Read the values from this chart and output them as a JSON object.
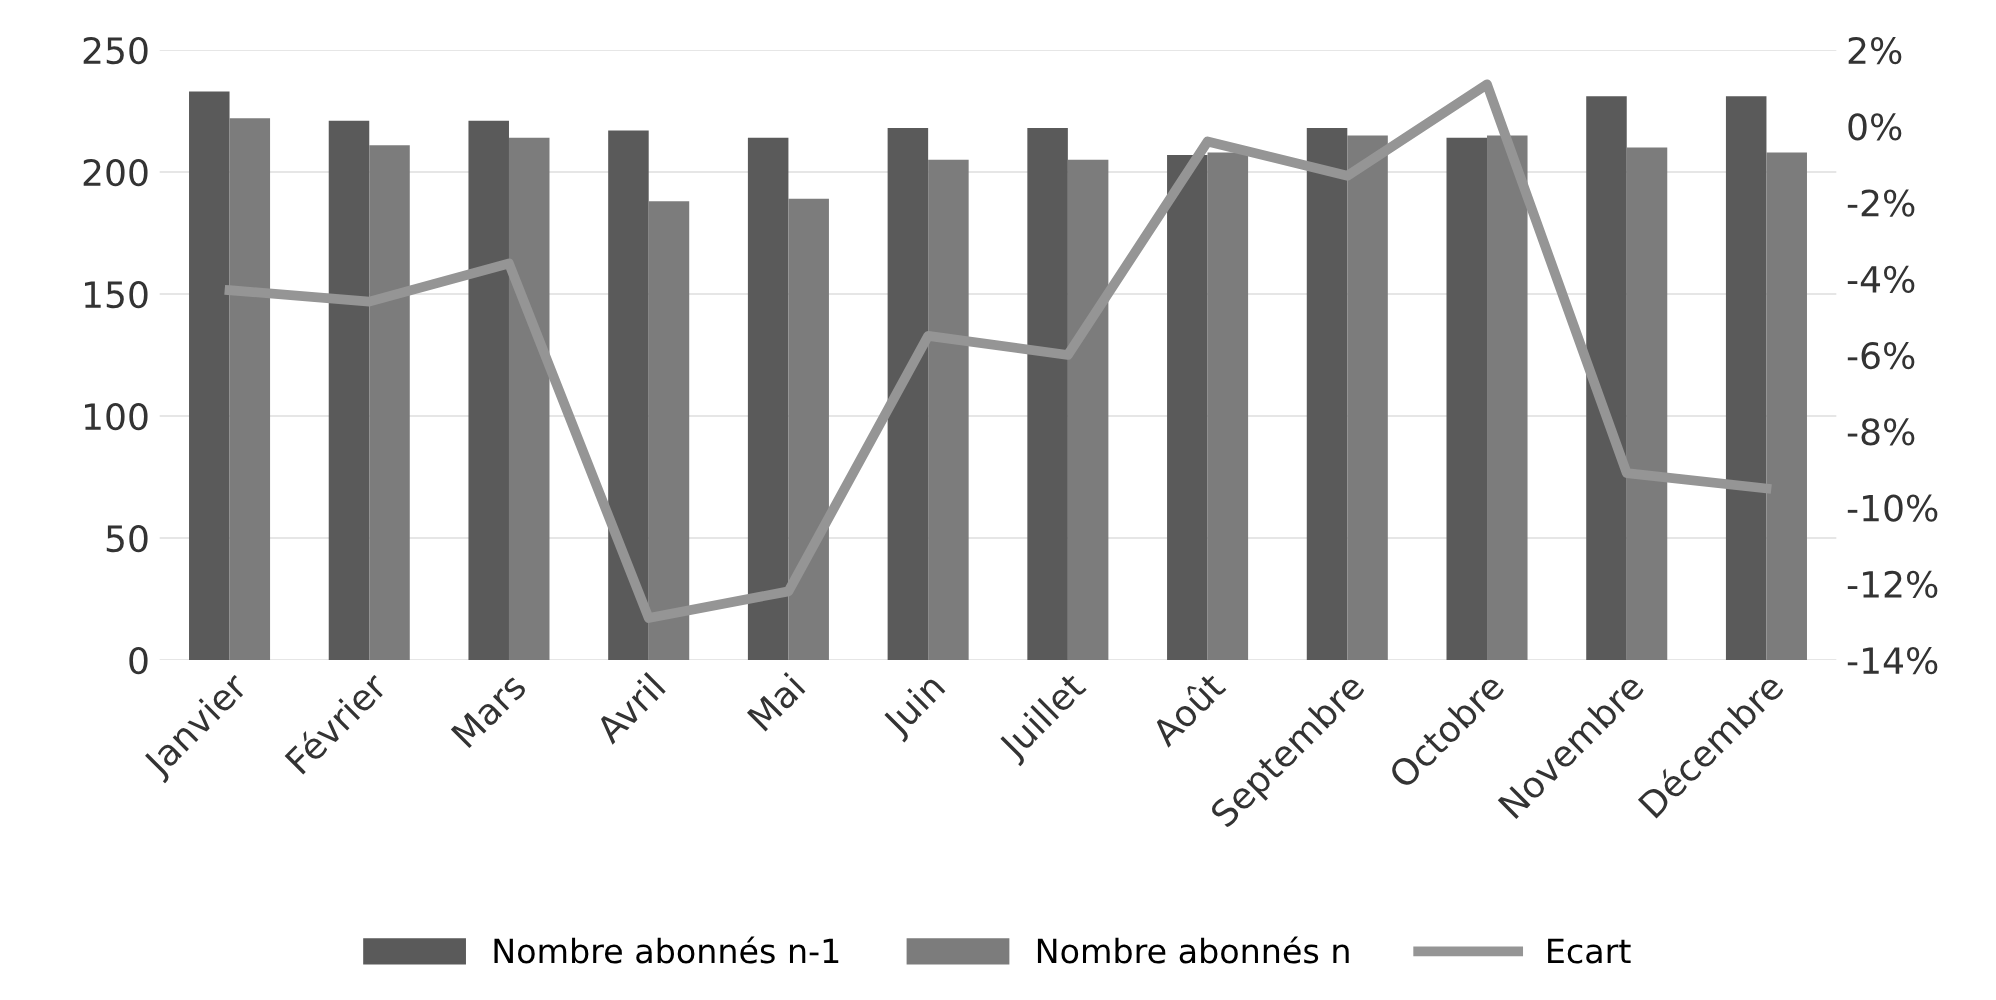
{
  "chart_data": {
    "type": "bar",
    "categories": [
      "Janvier",
      "Février",
      "Mars",
      "Avril",
      "Mai",
      "Juin",
      "Juillet",
      "Août",
      "Septembre",
      "Octobre",
      "Novembre",
      "Décembre"
    ],
    "series": [
      {
        "name": "Nombre abonnés n-1",
        "color": "#5a5a5a",
        "values": [
          233,
          221,
          221,
          217,
          214,
          218,
          218,
          207,
          218,
          214,
          231,
          231
        ]
      },
      {
        "name": "Nombre abonnés n",
        "color": "#7c7c7c",
        "values": [
          222,
          211,
          214,
          188,
          189,
          205,
          205,
          208,
          215,
          215,
          210,
          208
        ]
      },
      {
        "name": "Ecart",
        "type": "line",
        "axis": "y2",
        "color": "#959595",
        "values": [
          -4.3,
          -4.6,
          -3.6,
          -12.9,
          -12.2,
          -5.5,
          -6.0,
          -0.4,
          -1.3,
          1.1,
          -9.1,
          -9.5
        ]
      }
    ],
    "ylim": [
      0,
      250
    ],
    "yticks": [
      0,
      50,
      100,
      150,
      200,
      250
    ],
    "y2lim": [
      -14,
      2
    ],
    "y2ticks": [
      {
        "value": -14,
        "label": "-14%"
      },
      {
        "value": -12,
        "label": "-12%"
      },
      {
        "value": -10,
        "label": "-10%"
      },
      {
        "value": -8,
        "label": "-8%"
      },
      {
        "value": -6,
        "label": "-6%"
      },
      {
        "value": -4,
        "label": "-4%"
      },
      {
        "value": -2,
        "label": "-2%"
      },
      {
        "value": 0,
        "label": "0%"
      },
      {
        "value": 2,
        "label": "2%"
      }
    ],
    "grid": "y",
    "legend": "bottom",
    "marker": "none",
    "line_style": "solid"
  }
}
